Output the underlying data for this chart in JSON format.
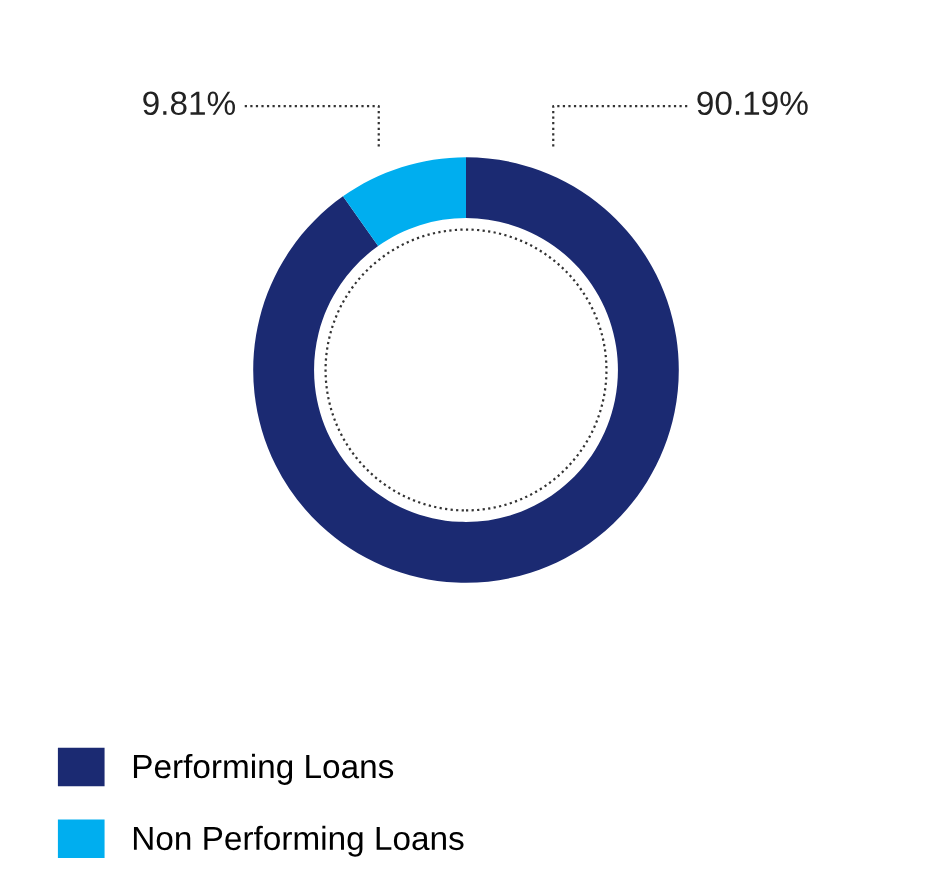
{
  "chart_data": {
    "type": "donut",
    "categories": [
      "Performing Loans",
      "Non Performing Loans"
    ],
    "values": [
      90.19,
      9.81
    ],
    "colors": [
      "#1b2a72",
      "#00aeef"
    ],
    "value_labels": [
      "90.19%",
      "9.81%"
    ],
    "legend": "bottom left"
  }
}
